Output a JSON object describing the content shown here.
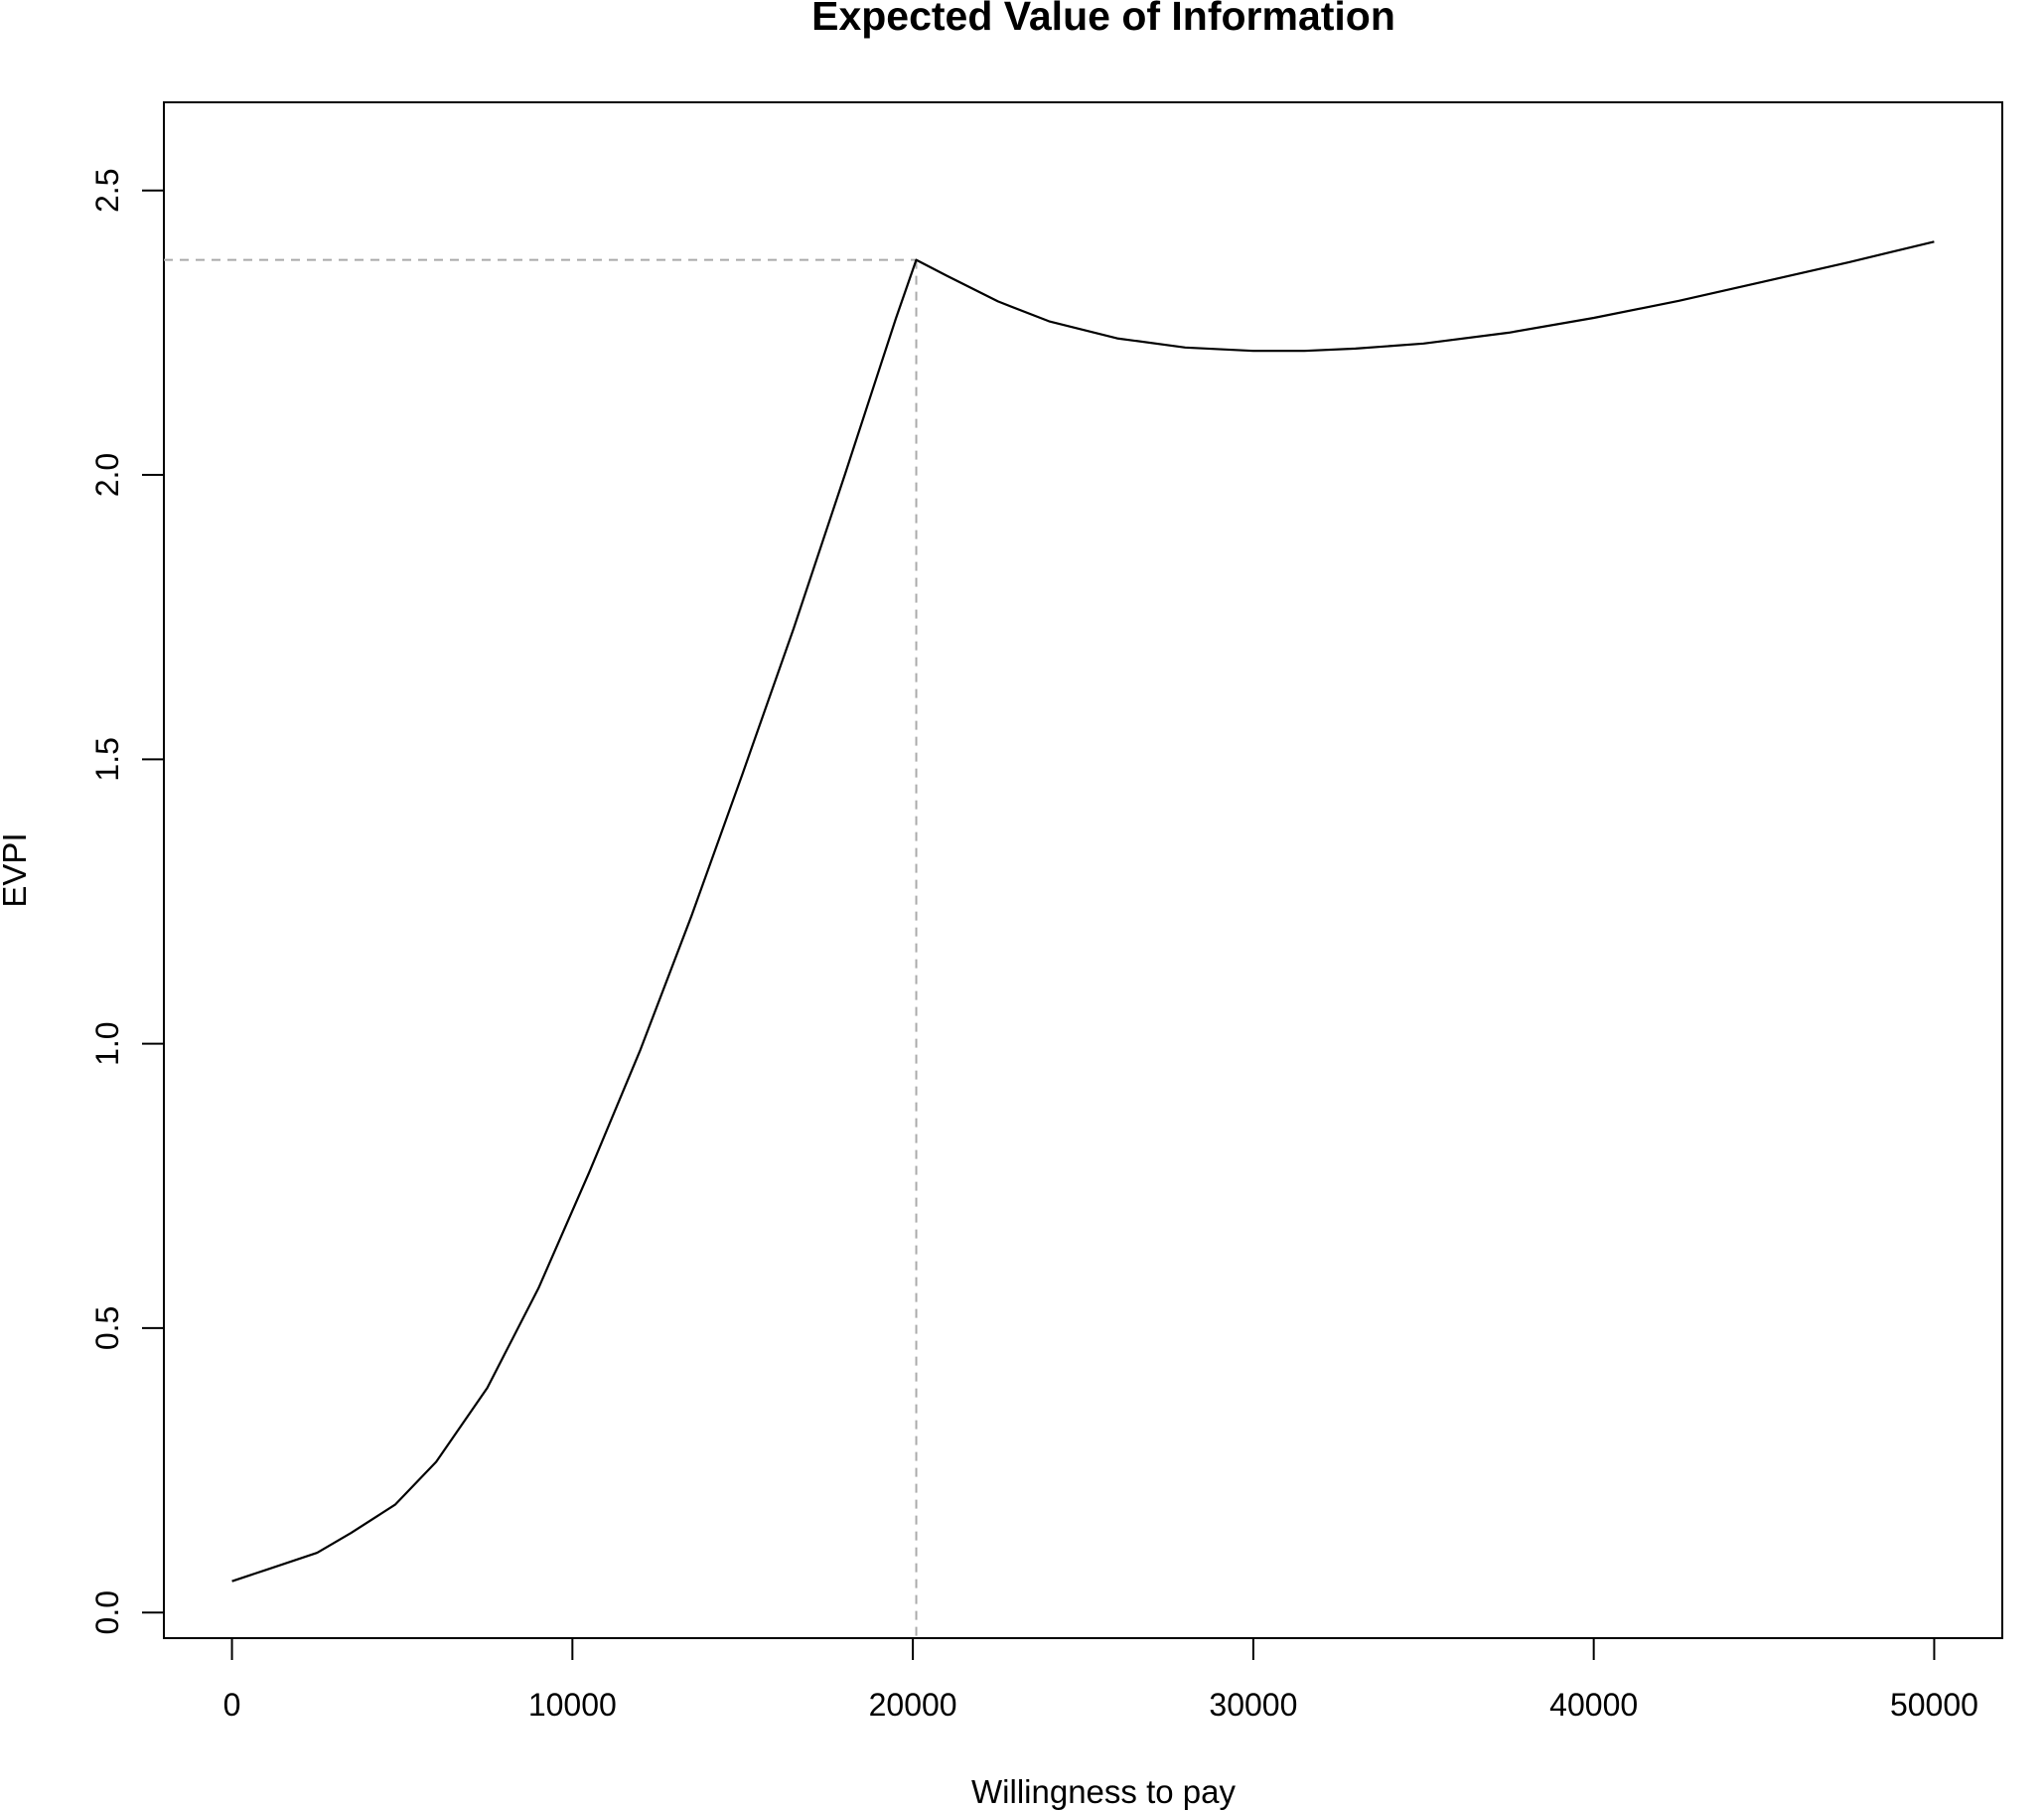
{
  "chart_data": {
    "type": "line",
    "title": "Expected Value of Information",
    "xlabel": "Willingness to pay",
    "ylabel": "EVPI",
    "xlim": [
      -2000,
      52000
    ],
    "ylim": [
      -0.045,
      2.655
    ],
    "x_ticks": [
      {
        "value": 0,
        "label": "0"
      },
      {
        "value": 10000,
        "label": "10000"
      },
      {
        "value": 20000,
        "label": "20000"
      },
      {
        "value": 30000,
        "label": "30000"
      },
      {
        "value": 40000,
        "label": "40000"
      },
      {
        "value": 50000,
        "label": "50000"
      }
    ],
    "y_ticks": [
      {
        "value": 0.0,
        "label": "0.0"
      },
      {
        "value": 0.5,
        "label": "0.5"
      },
      {
        "value": 1.0,
        "label": "1.0"
      },
      {
        "value": 1.5,
        "label": "1.5"
      },
      {
        "value": 2.0,
        "label": "2.0"
      },
      {
        "value": 2.5,
        "label": "2.5"
      }
    ],
    "grid": false,
    "series": [
      {
        "color": "#000000",
        "x": [
          0,
          1000,
          2500,
          3500,
          4800,
          6000,
          7500,
          9000,
          10500,
          12000,
          13500,
          15000,
          16500,
          18000,
          19500,
          20100,
          21000,
          22500,
          24000,
          26000,
          28000,
          30000,
          31500,
          33000,
          35000,
          37500,
          40000,
          42500,
          45000,
          47500,
          50000
        ],
        "y": [
          0.055,
          0.075,
          0.105,
          0.14,
          0.19,
          0.265,
          0.395,
          0.57,
          0.775,
          0.99,
          1.225,
          1.475,
          1.73,
          2.0,
          2.275,
          2.378,
          2.35,
          2.305,
          2.27,
          2.24,
          2.224,
          2.218,
          2.218,
          2.222,
          2.231,
          2.25,
          2.276,
          2.306,
          2.34,
          2.374,
          2.41
        ]
      }
    ],
    "reference_lines": {
      "color": "#aaaaaa",
      "style": "dashed",
      "x": 20100,
      "y": 2.378
    }
  }
}
